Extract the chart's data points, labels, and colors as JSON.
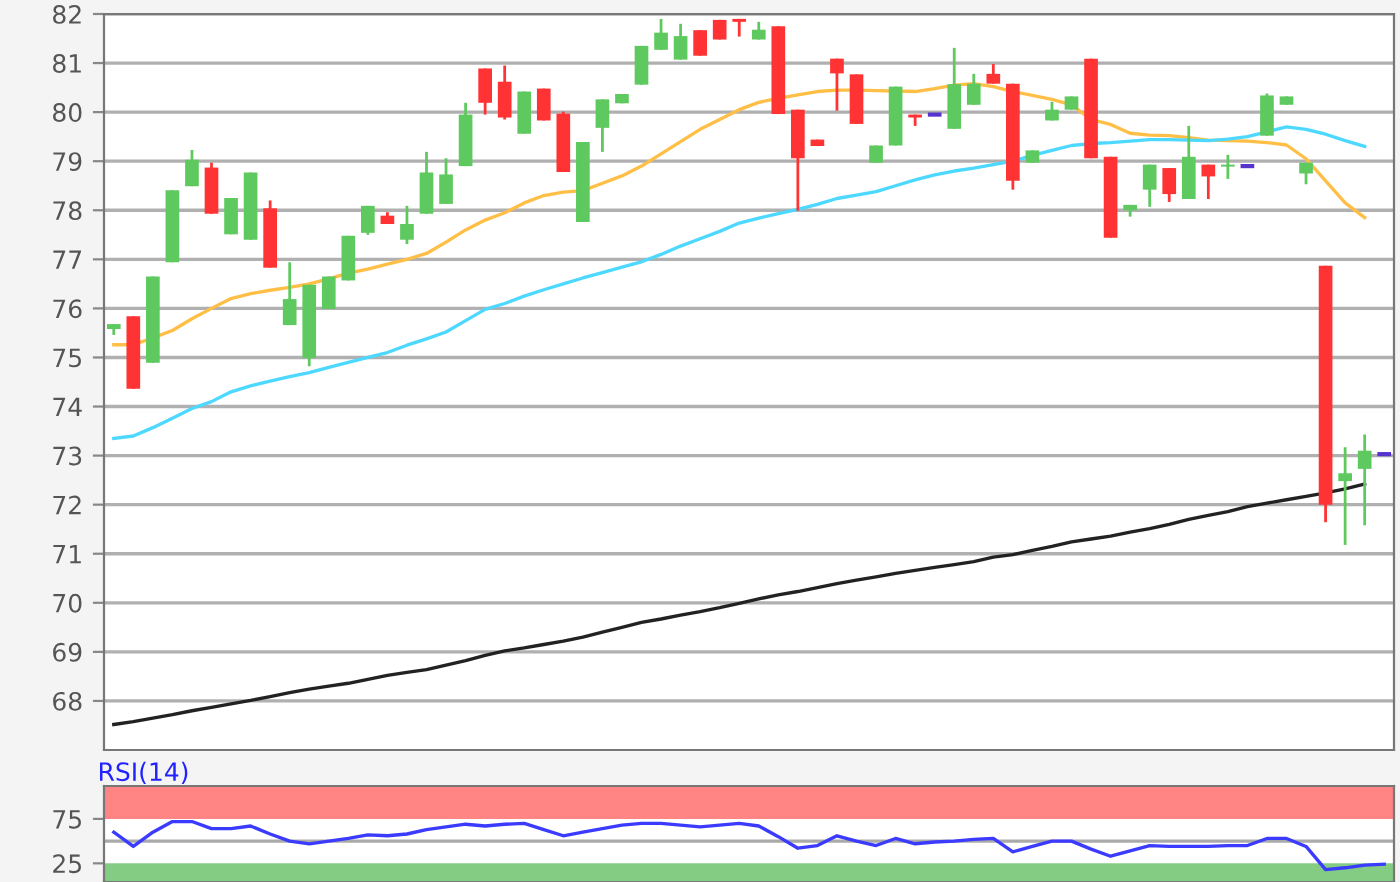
{
  "chart_data": [
    {
      "type": "candlestick",
      "categories": [
        null,
        null,
        null,
        null,
        null,
        null,
        null,
        null,
        null,
        null,
        null,
        null,
        null,
        null,
        null,
        null,
        null,
        null,
        null,
        null,
        null,
        null,
        null,
        null,
        null,
        null,
        null,
        null,
        null,
        null,
        null,
        null,
        null,
        null,
        null,
        null,
        null,
        null,
        null,
        null,
        null,
        null,
        null,
        null,
        null,
        null,
        null,
        null,
        null,
        null,
        null,
        null,
        null,
        null,
        null,
        null,
        null,
        null,
        null,
        null,
        null,
        null,
        null,
        null,
        null,
        null
      ],
      "ohlc": [
        [
          75.58,
          75.68,
          75.46,
          75.68
        ],
        [
          75.84,
          75.84,
          74.36,
          74.36
        ],
        [
          74.89,
          76.65,
          74.89,
          76.65
        ],
        [
          76.94,
          78.41,
          76.94,
          78.41
        ],
        [
          78.49,
          79.23,
          78.49,
          79.03
        ],
        [
          78.87,
          78.97,
          77.93,
          77.93
        ],
        [
          77.51,
          78.25,
          77.51,
          78.25
        ],
        [
          77.4,
          78.77,
          77.4,
          78.77
        ],
        [
          78.04,
          78.2,
          76.83,
          76.83
        ],
        [
          75.66,
          76.94,
          75.66,
          76.19
        ],
        [
          74.99,
          76.48,
          74.82,
          76.48
        ],
        [
          75.99,
          76.65,
          75.99,
          76.65
        ],
        [
          76.57,
          77.48,
          76.57,
          77.48
        ],
        [
          77.54,
          78.09,
          77.5,
          78.09
        ],
        [
          77.89,
          77.96,
          77.72,
          77.72
        ],
        [
          77.4,
          78.09,
          77.31,
          77.72
        ],
        [
          77.93,
          79.19,
          77.93,
          78.77
        ],
        [
          78.13,
          79.06,
          78.13,
          78.73
        ],
        [
          78.9,
          80.19,
          78.9,
          79.95
        ],
        [
          80.89,
          80.89,
          79.95,
          80.19
        ],
        [
          80.62,
          80.95,
          79.85,
          79.89
        ],
        [
          79.56,
          80.42,
          79.56,
          80.42
        ],
        [
          80.48,
          80.48,
          79.83,
          79.83
        ],
        [
          79.97,
          80.01,
          78.78,
          78.78
        ],
        [
          77.76,
          79.39,
          77.76,
          79.39
        ],
        [
          79.68,
          80.26,
          79.19,
          80.26
        ],
        [
          80.18,
          80.37,
          80.18,
          80.37
        ],
        [
          80.56,
          81.35,
          80.56,
          81.35
        ],
        [
          81.27,
          81.9,
          81.27,
          81.62
        ],
        [
          81.07,
          81.8,
          81.07,
          81.55
        ],
        [
          81.67,
          81.67,
          81.15,
          81.15
        ],
        [
          81.88,
          81.88,
          81.48,
          81.48
        ],
        [
          81.9,
          81.9,
          81.54,
          81.84
        ],
        [
          81.48,
          81.84,
          81.48,
          81.68
        ],
        [
          81.75,
          81.75,
          79.96,
          79.96
        ],
        [
          80.05,
          80.05,
          77.99,
          79.06
        ],
        [
          79.44,
          79.44,
          79.31,
          79.31
        ],
        [
          81.09,
          81.09,
          80.03,
          80.79
        ],
        [
          80.77,
          80.77,
          79.76,
          79.76
        ],
        [
          78.97,
          79.32,
          78.97,
          79.32
        ],
        [
          79.32,
          80.52,
          79.32,
          80.52
        ],
        [
          79.95,
          79.95,
          79.72,
          79.89
        ],
        [
          79.95,
          79.95,
          79.95,
          79.95
        ],
        [
          79.66,
          81.31,
          79.66,
          80.57
        ],
        [
          80.15,
          80.78,
          80.15,
          80.58
        ],
        [
          80.78,
          80.98,
          80.58,
          80.58
        ],
        [
          80.58,
          80.58,
          78.42,
          78.6
        ],
        [
          78.97,
          79.22,
          78.97,
          79.22
        ],
        [
          79.83,
          80.21,
          79.83,
          80.05
        ],
        [
          80.05,
          80.32,
          80.05,
          80.32
        ],
        [
          81.09,
          81.09,
          79.06,
          79.06
        ],
        [
          79.09,
          79.09,
          77.44,
          77.44
        ],
        [
          78.0,
          78.11,
          77.87,
          78.11
        ],
        [
          78.42,
          78.93,
          78.07,
          78.93
        ],
        [
          78.86,
          78.86,
          78.17,
          78.33
        ],
        [
          78.23,
          79.72,
          78.23,
          79.09
        ],
        [
          78.93,
          78.93,
          78.23,
          78.69
        ],
        [
          78.89,
          79.13,
          78.64,
          78.93
        ],
        [
          78.9,
          78.9,
          78.9,
          78.9
        ],
        [
          79.52,
          80.38,
          79.52,
          80.34
        ],
        [
          80.15,
          80.32,
          80.15,
          80.32
        ],
        [
          78.75,
          78.97,
          78.53,
          78.97
        ],
        [
          76.87,
          76.87,
          71.64,
          72.0
        ],
        [
          72.48,
          73.17,
          71.18,
          72.64
        ],
        [
          72.73,
          73.43,
          71.58,
          73.1
        ],
        [
          73.03,
          73.03,
          73.03,
          73.03
        ]
      ],
      "colors": [
        "#5ec95e",
        "#ff3333",
        "#5ec95e",
        "#5ec95e",
        "#5ec95e",
        "#ff3333",
        "#5ec95e",
        "#5ec95e",
        "#ff3333",
        "#5ec95e",
        "#5ec95e",
        "#5ec95e",
        "#5ec95e",
        "#5ec95e",
        "#ff3333",
        "#5ec95e",
        "#5ec95e",
        "#5ec95e",
        "#5ec95e",
        "#ff3333",
        "#ff3333",
        "#5ec95e",
        "#ff3333",
        "#ff3333",
        "#5ec95e",
        "#5ec95e",
        "#5ec95e",
        "#5ec95e",
        "#5ec95e",
        "#5ec95e",
        "#ff3333",
        "#ff3333",
        "#ff3333",
        "#5ec95e",
        "#ff3333",
        "#ff3333",
        "#ff3333",
        "#ff3333",
        "#ff3333",
        "#5ec95e",
        "#5ec95e",
        "#ff3333",
        "#5533cc",
        "#5ec95e",
        "#5ec95e",
        "#ff3333",
        "#ff3333",
        "#5ec95e",
        "#5ec95e",
        "#5ec95e",
        "#ff3333",
        "#ff3333",
        "#5ec95e",
        "#5ec95e",
        "#ff3333",
        "#5ec95e",
        "#ff3333",
        "#5ec95e",
        "#5533cc",
        "#5ec95e",
        "#5ec95e",
        "#5ec95e",
        "#ff3333",
        "#5ec95e",
        "#5ec95e",
        "#5533cc"
      ],
      "series": [
        {
          "type": "line",
          "color": "#ffbf47",
          "values": [
            75.26,
            75.26,
            75.4,
            75.55,
            75.79,
            76.0,
            76.2,
            76.3,
            76.37,
            76.43,
            76.5,
            76.6,
            76.72,
            76.8,
            76.9,
            77.0,
            77.12,
            77.35,
            77.6,
            77.8,
            77.95,
            78.15,
            78.3,
            78.37,
            78.4,
            78.55,
            78.7,
            78.9,
            79.15,
            79.4,
            79.65,
            79.85,
            80.05,
            80.2,
            80.28,
            80.35,
            80.42,
            80.45,
            80.45,
            80.44,
            80.43,
            80.42,
            80.48,
            80.55,
            80.58,
            80.52,
            80.42,
            80.34,
            80.26,
            80.15,
            79.85,
            79.75,
            79.57,
            79.53,
            79.52,
            79.48,
            79.43,
            79.42,
            79.41,
            79.38,
            79.33,
            79.05,
            78.6,
            78.15,
            77.85,
            null
          ]
        },
        {
          "type": "line",
          "color": "#4dd8ff",
          "values": [
            73.35,
            73.4,
            73.57,
            73.76,
            73.96,
            74.1,
            74.3,
            74.42,
            74.52,
            74.61,
            74.69,
            74.8,
            74.9,
            75.0,
            75.1,
            75.25,
            75.38,
            75.52,
            75.75,
            75.98,
            76.1,
            76.25,
            76.38,
            76.5,
            76.62,
            76.73,
            76.84,
            76.95,
            77.1,
            77.27,
            77.42,
            77.57,
            77.74,
            77.84,
            77.93,
            78.02,
            78.12,
            78.24,
            78.31,
            78.38,
            78.5,
            78.62,
            78.72,
            78.8,
            78.86,
            78.93,
            79.0,
            79.12,
            79.22,
            79.32,
            79.36,
            79.38,
            79.41,
            79.44,
            79.44,
            79.43,
            79.42,
            79.45,
            79.5,
            79.6,
            79.7,
            79.65,
            79.55,
            79.42,
            79.3,
            null
          ]
        },
        {
          "type": "line",
          "color": "#222222",
          "values": [
            67.52,
            67.58,
            67.65,
            67.72,
            67.8,
            67.87,
            67.94,
            68.01,
            68.09,
            68.17,
            68.24,
            68.3,
            68.36,
            68.44,
            68.52,
            68.58,
            68.64,
            68.73,
            68.82,
            68.93,
            69.02,
            69.08,
            69.15,
            69.22,
            69.3,
            69.4,
            69.5,
            69.6,
            69.67,
            69.75,
            69.82,
            69.9,
            69.99,
            70.08,
            70.16,
            70.23,
            70.31,
            70.39,
            70.46,
            70.53,
            70.6,
            70.66,
            70.72,
            70.78,
            70.84,
            70.93,
            70.98,
            71.07,
            71.15,
            71.24,
            71.3,
            71.36,
            71.44,
            71.51,
            71.6,
            71.7,
            71.78,
            71.86,
            71.96,
            72.03,
            72.1,
            72.17,
            72.24,
            72.32,
            72.42,
            null
          ]
        }
      ],
      "ylim": [
        67,
        82
      ],
      "yticks": [
        68,
        69,
        70,
        71,
        72,
        73,
        74,
        75,
        76,
        77,
        78,
        79,
        80,
        81,
        82
      ],
      "grid": "y",
      "tick_labels": "y"
    },
    {
      "type": "line",
      "title": "RSI(14)",
      "categories": [
        null,
        null,
        null,
        null,
        null,
        null,
        null,
        null,
        null,
        null,
        null,
        null,
        null,
        null,
        null,
        null,
        null,
        null,
        null,
        null,
        null,
        null,
        null,
        null,
        null,
        null,
        null,
        null,
        null,
        null,
        null,
        null,
        null,
        null,
        null,
        null,
        null,
        null,
        null,
        null,
        null,
        null,
        null,
        null,
        null,
        null,
        null,
        null,
        null,
        null,
        null,
        null,
        null,
        null,
        null,
        null,
        null,
        null,
        null,
        null,
        null,
        null,
        null,
        null,
        null,
        null
      ],
      "series": [
        {
          "color": "#3b3bff",
          "values": [
            60,
            44,
            60,
            72,
            72,
            64,
            64,
            67,
            58,
            50,
            47,
            50,
            53,
            57,
            56,
            58,
            63,
            66,
            69,
            67,
            69,
            70,
            63,
            56,
            60,
            64,
            68,
            70,
            70,
            68,
            66,
            68,
            70,
            67,
            55,
            42,
            45,
            56,
            50,
            45,
            53,
            47,
            49,
            50,
            52,
            53,
            38,
            44,
            50,
            50,
            41,
            33,
            39,
            45,
            44,
            44,
            44,
            45,
            45,
            53,
            53,
            44,
            18,
            20,
            23,
            24
          ]
        }
      ],
      "ylim": [
        4,
        112
      ],
      "yticks": [
        25,
        75
      ],
      "bands": [
        {
          "axis": "y",
          "from": 75,
          "to": 112,
          "color": "#ff8484"
        },
        {
          "axis": "y",
          "from": 4,
          "to": 25,
          "color": "#84cc84"
        }
      ],
      "ref_lines": [
        {
          "axis": "y",
          "value": 50,
          "color": "#aaaaaa"
        }
      ],
      "tick_labels": "y"
    }
  ]
}
